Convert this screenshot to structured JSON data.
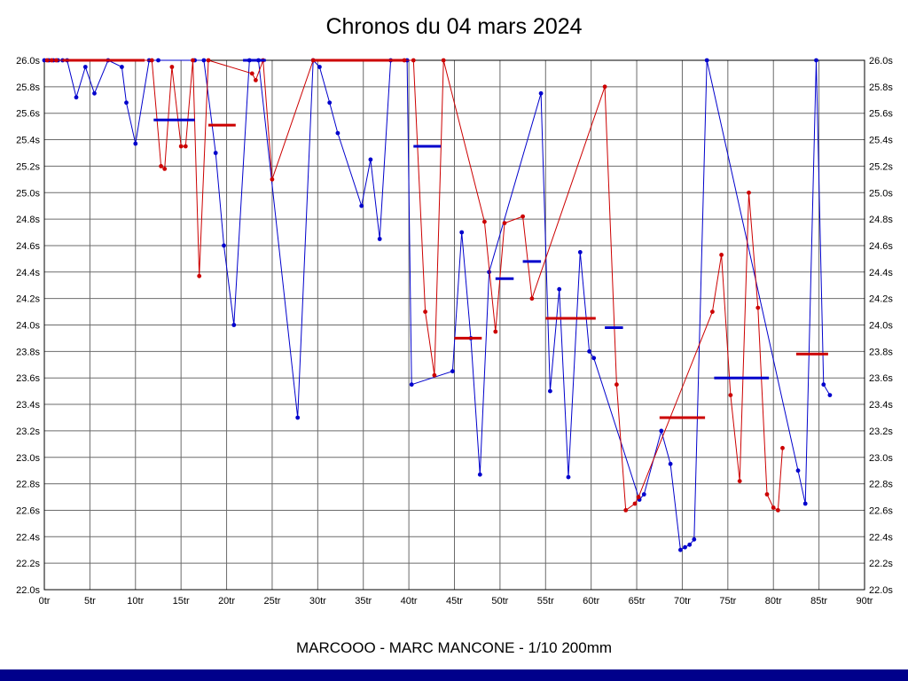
{
  "title": "Chronos du 04 mars 2024",
  "caption": "MARCOOO - MARC MANCONE - 1/10 200mm",
  "footer_bar_color": "#00008b",
  "chart_data": {
    "type": "line",
    "title": "Chronos du 04 mars 2024",
    "subtitle": "MARCOOO - MARC MANCONE - 1/10 200mm",
    "x_unit": "tr",
    "y_unit": "s",
    "xlim": [
      0,
      90
    ],
    "ylim": [
      22.0,
      26.0
    ],
    "x_tick_step": 5,
    "y_tick_step": 0.2,
    "grid": true,
    "grid_color": "#6b6b6b",
    "x_ticks": [
      "0tr",
      "5tr",
      "10tr",
      "15tr",
      "20tr",
      "25tr",
      "30tr",
      "35tr",
      "40tr",
      "45tr",
      "50tr",
      "55tr",
      "60tr",
      "65tr",
      "70tr",
      "75tr",
      "80tr",
      "85tr",
      "90tr"
    ],
    "y_ticks": [
      "26.0s",
      "25.8s",
      "25.6s",
      "25.4s",
      "25.2s",
      "25.0s",
      "24.8s",
      "24.6s",
      "24.4s",
      "24.2s",
      "24.0s",
      "23.8s",
      "23.6s",
      "23.4s",
      "23.2s",
      "23.0s",
      "22.8s",
      "22.6s",
      "22.4s",
      "22.2s",
      "22.0s"
    ],
    "series": [
      {
        "name": "blue",
        "color": "#0000cc",
        "points": [
          [
            0,
            26.0
          ],
          [
            0.5,
            26.0
          ],
          [
            1,
            26.0
          ],
          [
            1.5,
            26.0
          ],
          [
            2,
            26.0
          ],
          [
            2.5,
            26.0
          ],
          [
            3.5,
            25.72
          ],
          [
            4.5,
            25.95
          ],
          [
            5.5,
            25.75
          ],
          [
            7,
            26.0
          ],
          [
            8.5,
            25.95
          ],
          [
            9,
            25.68
          ],
          [
            10,
            25.37
          ],
          [
            11.5,
            26.0
          ],
          [
            12.5,
            26.0
          ],
          [
            16.5,
            26.0
          ],
          [
            17.5,
            26.0
          ],
          [
            18.8,
            25.3
          ],
          [
            19.7,
            24.6
          ],
          [
            20.8,
            24.0
          ],
          [
            22.5,
            26.0
          ],
          [
            23.5,
            26.0
          ],
          [
            27.8,
            23.3
          ],
          [
            29.5,
            26.0
          ],
          [
            30.2,
            25.95
          ],
          [
            31.3,
            25.68
          ],
          [
            32.2,
            25.45
          ],
          [
            34.8,
            24.9
          ],
          [
            35.8,
            25.25
          ],
          [
            36.8,
            24.65
          ],
          [
            38,
            26.0
          ],
          [
            39.8,
            26.0
          ],
          [
            40.3,
            23.55
          ],
          [
            44.8,
            23.65
          ],
          [
            45.8,
            24.7
          ],
          [
            46.8,
            23.9
          ],
          [
            47.8,
            22.87
          ],
          [
            48.8,
            24.4
          ],
          [
            54.5,
            25.75
          ],
          [
            55.5,
            23.5
          ],
          [
            56.5,
            24.27
          ],
          [
            57.5,
            22.85
          ],
          [
            58.8,
            24.55
          ],
          [
            59.8,
            23.8
          ],
          [
            60.3,
            23.75
          ],
          [
            65.3,
            22.68
          ],
          [
            65.8,
            22.72
          ],
          [
            67.7,
            23.2
          ],
          [
            68.7,
            22.95
          ],
          [
            69.8,
            22.3
          ],
          [
            70.3,
            22.32
          ],
          [
            70.8,
            22.34
          ],
          [
            71.3,
            22.38
          ],
          [
            72.7,
            26.0
          ],
          [
            82.7,
            22.9
          ],
          [
            83.5,
            22.65
          ],
          [
            84.7,
            26.0
          ],
          [
            85.5,
            23.55
          ],
          [
            86.2,
            23.47
          ]
        ]
      },
      {
        "name": "red",
        "color": "#cc0000",
        "points": [
          [
            0.3,
            26.0
          ],
          [
            0.8,
            26.0
          ],
          [
            1.3,
            26.0
          ],
          [
            11.8,
            26.0
          ],
          [
            12.8,
            25.2
          ],
          [
            13.2,
            25.18
          ],
          [
            14,
            25.95
          ],
          [
            15,
            25.35
          ],
          [
            15.5,
            25.35
          ],
          [
            16.3,
            26.0
          ],
          [
            17,
            24.37
          ],
          [
            18,
            26.0
          ],
          [
            22.8,
            25.9
          ],
          [
            23.2,
            25.85
          ],
          [
            24,
            26.0
          ],
          [
            25,
            25.1
          ],
          [
            29.5,
            26.0
          ],
          [
            39.5,
            26.0
          ],
          [
            40.5,
            26.0
          ],
          [
            41.8,
            24.1
          ],
          [
            42.8,
            23.62
          ],
          [
            43.8,
            26.0
          ],
          [
            48.3,
            24.78
          ],
          [
            49.5,
            23.95
          ],
          [
            50.5,
            24.77
          ],
          [
            52.5,
            24.82
          ],
          [
            53.5,
            24.2
          ],
          [
            61.5,
            25.8
          ],
          [
            62.8,
            23.55
          ],
          [
            63.8,
            22.6
          ],
          [
            64.8,
            22.65
          ],
          [
            65.2,
            22.7
          ],
          [
            73.3,
            24.1
          ],
          [
            74.3,
            24.53
          ],
          [
            75.3,
            23.47
          ],
          [
            76.3,
            22.82
          ],
          [
            77.3,
            25.0
          ],
          [
            78.3,
            24.13
          ],
          [
            79.3,
            22.72
          ],
          [
            80,
            22.62
          ],
          [
            80.5,
            22.6
          ],
          [
            81,
            23.07
          ]
        ]
      }
    ],
    "average_segments": [
      {
        "color": "#cc0000",
        "x1": 2,
        "x2": 11,
        "y": 26.0
      },
      {
        "color": "#0000cc",
        "x1": 12,
        "x2": 16.5,
        "y": 25.55
      },
      {
        "color": "#cc0000",
        "x1": 18,
        "x2": 21,
        "y": 25.51
      },
      {
        "color": "#0000cc",
        "x1": 21.8,
        "x2": 24.3,
        "y": 26.0
      },
      {
        "color": "#cc0000",
        "x1": 29.5,
        "x2": 39.5,
        "y": 26.0
      },
      {
        "color": "#0000cc",
        "x1": 40.5,
        "x2": 43.5,
        "y": 25.35
      },
      {
        "color": "#cc0000",
        "x1": 45,
        "x2": 48,
        "y": 23.9
      },
      {
        "color": "#0000cc",
        "x1": 49.5,
        "x2": 51.5,
        "y": 24.35
      },
      {
        "color": "#0000cc",
        "x1": 52.5,
        "x2": 54.5,
        "y": 24.48
      },
      {
        "color": "#cc0000",
        "x1": 55,
        "x2": 60.5,
        "y": 24.05
      },
      {
        "color": "#0000cc",
        "x1": 61.5,
        "x2": 63.5,
        "y": 23.98
      },
      {
        "color": "#cc0000",
        "x1": 67.5,
        "x2": 72.5,
        "y": 23.3
      },
      {
        "color": "#0000cc",
        "x1": 73.5,
        "x2": 79.5,
        "y": 23.6
      },
      {
        "color": "#cc0000",
        "x1": 82.5,
        "x2": 86,
        "y": 23.78
      }
    ]
  }
}
